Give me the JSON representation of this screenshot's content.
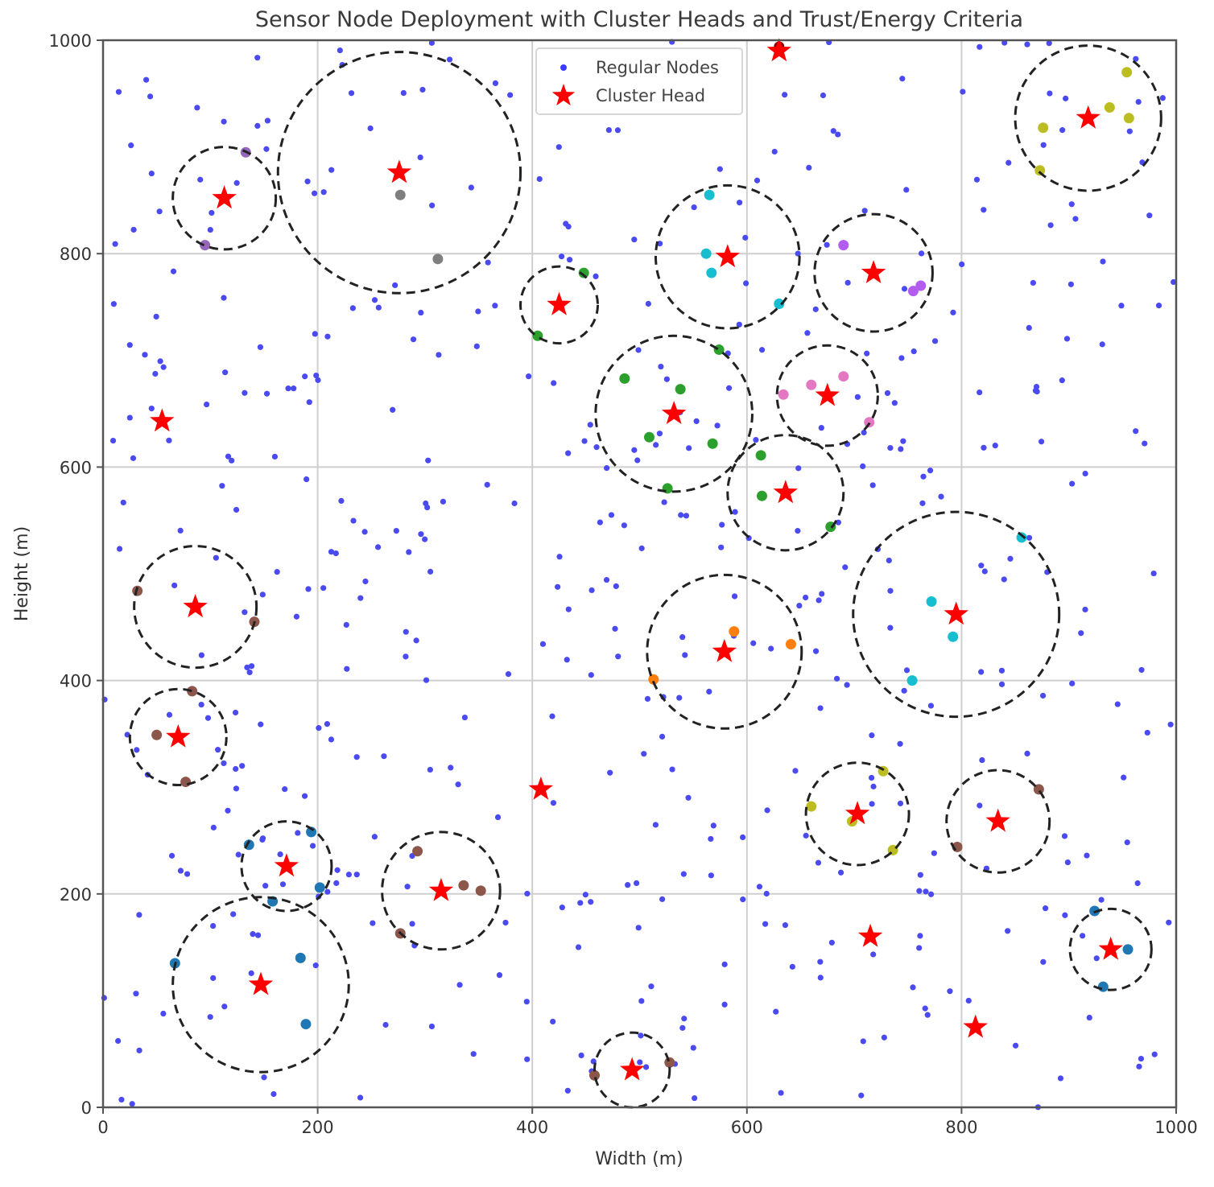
{
  "chart_data": {
    "type": "scatter",
    "title": "Sensor Node Deployment with Cluster Heads and Trust/Energy Criteria",
    "xlabel": "Width (m)",
    "ylabel": "Height (m)",
    "xlim": [
      0,
      1000
    ],
    "ylim": [
      0,
      1000
    ],
    "xticks": [
      "0",
      "200",
      "400",
      "600",
      "800",
      "1000"
    ],
    "yticks": [
      "0",
      "200",
      "400",
      "600",
      "800",
      "1000"
    ],
    "grid": true,
    "legend": {
      "placement": "top-center",
      "entries": [
        {
          "label": "Regular Nodes",
          "marker": "dot",
          "color": "#3b3bff"
        },
        {
          "label": "Cluster Head",
          "marker": "star",
          "color": "#ff0000"
        }
      ]
    },
    "regular_nodes_color": "#4a4af0",
    "regular_nodes_count_estimate": 500,
    "regular_nodes_seed": 20240601,
    "cluster_heads": [
      {
        "x": 113,
        "y": 852,
        "radius": 48,
        "member_color": "#9467bd",
        "members": [
          [
            133,
            895
          ],
          [
            95,
            808
          ]
        ]
      },
      {
        "x": 276,
        "y": 876,
        "radius": 113,
        "member_color": "#7f7f7f",
        "members": [
          [
            277,
            855
          ],
          [
            312,
            795
          ]
        ]
      },
      {
        "x": 425,
        "y": 752,
        "radius": 36,
        "member_color": "#2ca02c",
        "members": [
          [
            448,
            782
          ],
          [
            405,
            723
          ]
        ]
      },
      {
        "x": 582,
        "y": 797,
        "radius": 67,
        "member_color": "#17becf",
        "members": [
          [
            565,
            855
          ],
          [
            562,
            800
          ],
          [
            567,
            782
          ],
          [
            630,
            753
          ]
        ]
      },
      {
        "x": 718,
        "y": 782,
        "radius": 55,
        "member_color": "#b35cf0",
        "members": [
          [
            690,
            808
          ],
          [
            755,
            765
          ],
          [
            762,
            770
          ]
        ]
      },
      {
        "x": 918,
        "y": 927,
        "radius": 68,
        "member_color": "#bcbd22",
        "members": [
          [
            876,
            918
          ],
          [
            938,
            937
          ],
          [
            954,
            970
          ],
          [
            956,
            927
          ],
          [
            873,
            878
          ]
        ]
      },
      {
        "x": 532,
        "y": 650,
        "radius": 73,
        "member_color": "#2ca02c",
        "members": [
          [
            486,
            683
          ],
          [
            538,
            673
          ],
          [
            509,
            628
          ],
          [
            568,
            622
          ],
          [
            526,
            580
          ],
          [
            574,
            710
          ]
        ]
      },
      {
        "x": 675,
        "y": 667,
        "radius": 47,
        "member_color": "#e377c2",
        "members": [
          [
            634,
            668
          ],
          [
            660,
            677
          ],
          [
            690,
            685
          ],
          [
            714,
            642
          ]
        ]
      },
      {
        "x": 636,
        "y": 576,
        "radius": 54,
        "member_color": "#2ca02c",
        "members": [
          [
            613,
            611
          ],
          [
            614,
            573
          ],
          [
            678,
            544
          ]
        ]
      },
      {
        "x": 55,
        "y": 643,
        "radius": 0,
        "member_color": "#000000",
        "members": []
      },
      {
        "x": 86,
        "y": 469,
        "radius": 57,
        "member_color": "#8c564b",
        "members": [
          [
            32,
            484
          ],
          [
            141,
            455
          ]
        ]
      },
      {
        "x": 70,
        "y": 347,
        "radius": 45,
        "member_color": "#8c564b",
        "members": [
          [
            50,
            349
          ],
          [
            83,
            390
          ],
          [
            77,
            305
          ]
        ]
      },
      {
        "x": 579,
        "y": 427,
        "radius": 72,
        "member_color": "#ff7f0e",
        "members": [
          [
            588,
            446
          ],
          [
            641,
            434
          ],
          [
            513,
            401
          ]
        ]
      },
      {
        "x": 795,
        "y": 462,
        "radius": 96,
        "member_color": "#17becf",
        "members": [
          [
            772,
            474
          ],
          [
            792,
            441
          ],
          [
            754,
            400
          ],
          [
            856,
            534
          ]
        ]
      },
      {
        "x": 408,
        "y": 298,
        "radius": 0,
        "member_color": "#000000",
        "members": []
      },
      {
        "x": 171,
        "y": 226,
        "radius": 42,
        "member_color": "#1f77b4",
        "members": [
          [
            136,
            246
          ],
          [
            194,
            258
          ],
          [
            202,
            206
          ],
          [
            158,
            193
          ]
        ]
      },
      {
        "x": 315,
        "y": 203,
        "radius": 55,
        "member_color": "#8c564b",
        "members": [
          [
            293,
            240
          ],
          [
            336,
            208
          ],
          [
            352,
            203
          ],
          [
            277,
            163
          ]
        ]
      },
      {
        "x": 147,
        "y": 115,
        "radius": 82,
        "member_color": "#1f77b4",
        "members": [
          [
            67,
            135
          ],
          [
            184,
            140
          ],
          [
            189,
            78
          ]
        ]
      },
      {
        "x": 703,
        "y": 275,
        "radius": 48,
        "member_color": "#bcbd22",
        "members": [
          [
            660,
            282
          ],
          [
            698,
            268
          ],
          [
            727,
            315
          ],
          [
            736,
            241
          ]
        ]
      },
      {
        "x": 834,
        "y": 268,
        "radius": 48,
        "member_color": "#8c564b",
        "members": [
          [
            872,
            298
          ],
          [
            796,
            244
          ]
        ]
      },
      {
        "x": 715,
        "y": 160,
        "radius": 0,
        "member_color": "#000000",
        "members": []
      },
      {
        "x": 939,
        "y": 148,
        "radius": 38,
        "member_color": "#1f77b4",
        "members": [
          [
            924,
            184
          ],
          [
            955,
            148
          ],
          [
            932,
            113
          ]
        ]
      },
      {
        "x": 813,
        "y": 75,
        "radius": 0,
        "member_color": "#000000",
        "members": []
      },
      {
        "x": 493,
        "y": 35,
        "radius": 35,
        "member_color": "#8c564b",
        "members": [
          [
            458,
            30
          ],
          [
            528,
            42
          ]
        ]
      },
      {
        "x": 630,
        "y": 990,
        "radius": 0,
        "member_color": "#8b0000",
        "members": [
          [
            630,
            994
          ]
        ]
      }
    ]
  }
}
